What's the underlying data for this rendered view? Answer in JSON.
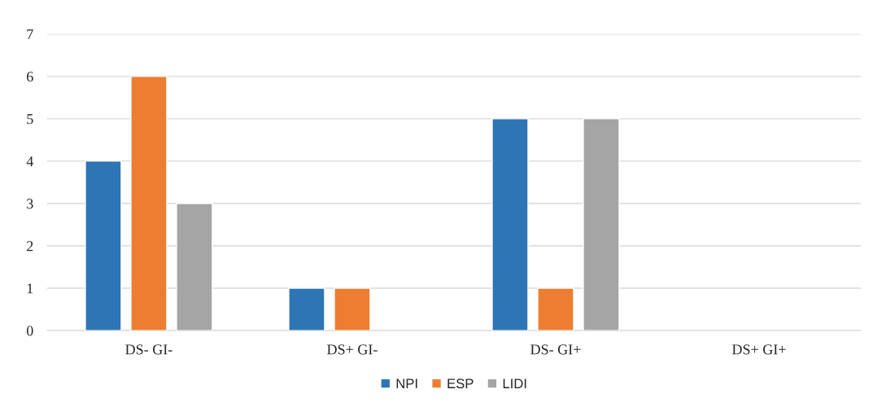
{
  "chart_data": {
    "type": "bar",
    "categories": [
      "DS- GI-",
      "DS+ GI-",
      "DS- GI+",
      "DS+ GI+"
    ],
    "series": [
      {
        "name": "NPI",
        "color": "#2e75b6",
        "values": [
          4,
          1,
          5,
          null
        ]
      },
      {
        "name": "ESP",
        "color": "#ed7d31",
        "values": [
          6,
          1,
          1,
          null
        ]
      },
      {
        "name": "LIDI",
        "color": "#a5a5a5",
        "values": [
          3,
          null,
          5,
          null
        ]
      }
    ],
    "ylim": [
      0,
      7
    ],
    "yticks": [
      0,
      1,
      2,
      3,
      4,
      5,
      6,
      7
    ],
    "grid": "y",
    "legend": "bottom"
  }
}
